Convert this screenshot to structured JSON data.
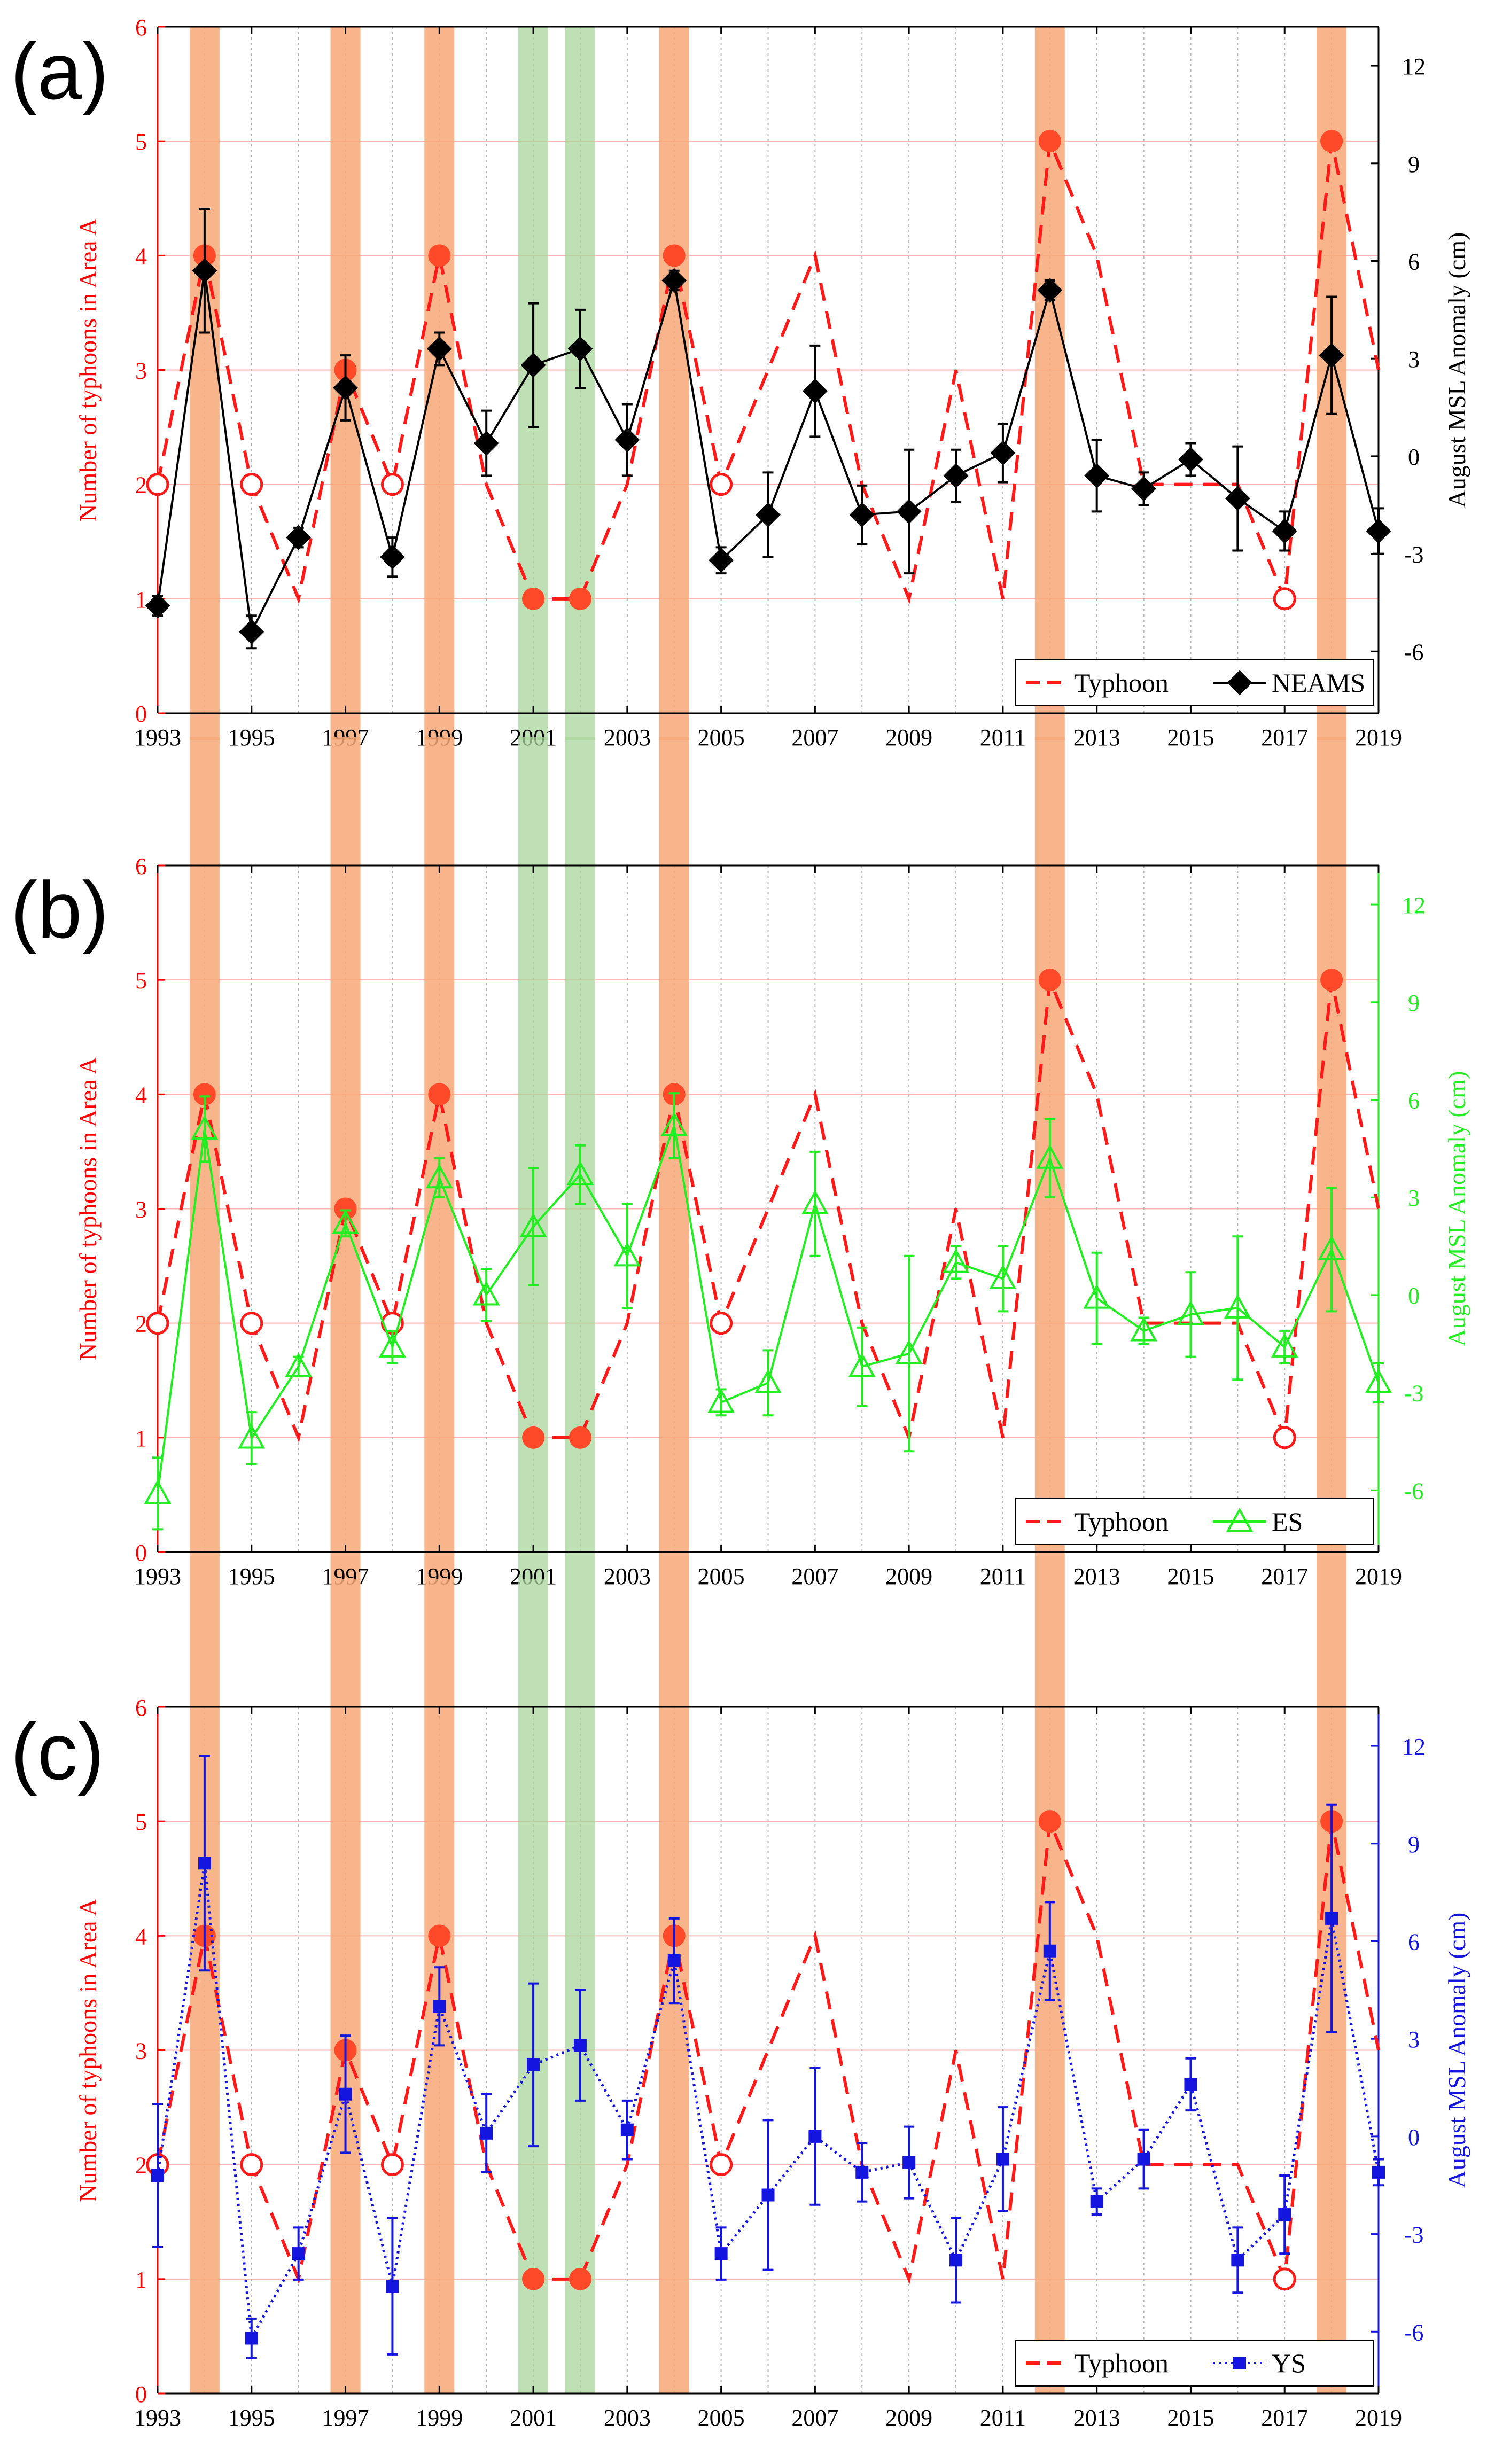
{
  "figure": {
    "colors": {
      "typhoon": "#ff1a1a",
      "typhoon_marker": "#ff4a2a",
      "orange_band": "#f7a877",
      "green_band": "#a9d59b",
      "grid": "#ffb3b3",
      "left_axis": "#ff0000"
    }
  },
  "chart_data": [
    {
      "panel_label": "(a)",
      "type": "line",
      "series_name": "NEAMS",
      "series_color": "#000000",
      "marker": "diamond",
      "line_style": "solid",
      "legend": [
        "Typhoon",
        "NEAMS"
      ],
      "legend_position": "bottom-right",
      "xlim": [
        1993,
        2019
      ],
      "x_ticks": [
        "1993",
        "1995",
        "1997",
        "1999",
        "2001",
        "2003",
        "2005",
        "2007",
        "2009",
        "2011",
        "2013",
        "2015",
        "2017",
        "2019"
      ],
      "ylabel": "Number of typhoons in Area A",
      "ylim": [
        0,
        6
      ],
      "y_ticks": [
        "0",
        "1",
        "2",
        "3",
        "4",
        "5",
        "6"
      ],
      "y2label": "August MSL Anomaly (cm)",
      "y2lim": [
        -7.9,
        13.2
      ],
      "y2_ticks": [
        "-6",
        "-3",
        "0",
        "3",
        "6",
        "9",
        "12"
      ],
      "orange_highlight_years": [
        1994,
        1997,
        1999,
        2004,
        2012,
        2018
      ],
      "green_highlight_years": [
        2001,
        2002
      ],
      "typhoon": {
        "years": [
          1993,
          1994,
          1995,
          1996,
          1997,
          1998,
          1999,
          2000,
          2001,
          2002,
          2003,
          2004,
          2005,
          2006,
          2007,
          2008,
          2009,
          2010,
          2011,
          2012,
          2013,
          2014,
          2015,
          2016,
          2017,
          2018,
          2019
        ],
        "counts": [
          2,
          4,
          2,
          1,
          3,
          2,
          4,
          2,
          1,
          1,
          2,
          4,
          2,
          3,
          4,
          2,
          1,
          3,
          1,
          5,
          4,
          2,
          2,
          2,
          1,
          5,
          3
        ],
        "filled_years": [
          1994,
          1997,
          1999,
          2001,
          2002,
          2004,
          2012,
          2018
        ],
        "open_years": [
          1993,
          1995,
          1998,
          2005,
          2017
        ]
      },
      "msl": {
        "years": [
          1993,
          1994,
          1995,
          1996,
          1997,
          1998,
          1999,
          2000,
          2001,
          2002,
          2003,
          2004,
          2005,
          2006,
          2007,
          2008,
          2009,
          2010,
          2011,
          2012,
          2013,
          2014,
          2015,
          2016,
          2017,
          2018,
          2019
        ],
        "values": [
          -4.6,
          5.7,
          -5.4,
          -2.5,
          2.1,
          -3.1,
          3.3,
          0.4,
          2.8,
          3.3,
          0.5,
          5.4,
          -3.2,
          -1.8,
          2.0,
          -1.8,
          -1.7,
          -0.6,
          0.1,
          5.1,
          -0.6,
          -1.0,
          -0.1,
          -1.3,
          -2.3,
          3.1,
          -2.3
        ],
        "errors": [
          0.3,
          1.9,
          0.5,
          0.3,
          1.0,
          0.6,
          0.5,
          1.0,
          1.9,
          1.2,
          1.1,
          0.3,
          0.4,
          1.3,
          1.4,
          0.9,
          1.9,
          0.8,
          0.9,
          0.3,
          1.1,
          0.5,
          0.5,
          1.6,
          0.6,
          1.8,
          0.7
        ]
      }
    },
    {
      "panel_label": "(b)",
      "type": "line",
      "series_name": "ES",
      "series_color": "#22ee22",
      "marker": "triangle-open",
      "line_style": "solid",
      "legend": [
        "Typhoon",
        "ES"
      ],
      "legend_position": "bottom-right",
      "xlim": [
        1993,
        2019
      ],
      "x_ticks": [
        "1993",
        "1995",
        "1997",
        "1999",
        "2001",
        "2003",
        "2005",
        "2007",
        "2009",
        "2011",
        "2013",
        "2015",
        "2017",
        "2019"
      ],
      "ylabel": "Number of typhoons in Area A",
      "ylim": [
        0,
        6
      ],
      "y_ticks": [
        "0",
        "1",
        "2",
        "3",
        "4",
        "5",
        "6"
      ],
      "y2label": "August MSL Anomaly (cm)",
      "y2lim": [
        -7.9,
        13.2
      ],
      "y2_ticks": [
        "-6",
        "-3",
        "0",
        "3",
        "6",
        "9",
        "12"
      ],
      "orange_highlight_years": [
        1994,
        1997,
        1999,
        2004,
        2012,
        2018
      ],
      "green_highlight_years": [
        2001,
        2002
      ],
      "typhoon": {
        "years": [
          1993,
          1994,
          1995,
          1996,
          1997,
          1998,
          1999,
          2000,
          2001,
          2002,
          2003,
          2004,
          2005,
          2006,
          2007,
          2008,
          2009,
          2010,
          2011,
          2012,
          2013,
          2014,
          2015,
          2016,
          2017,
          2018,
          2019
        ],
        "counts": [
          2,
          4,
          2,
          1,
          3,
          2,
          4,
          2,
          1,
          1,
          2,
          4,
          2,
          3,
          4,
          2,
          1,
          3,
          1,
          5,
          4,
          2,
          2,
          2,
          1,
          5,
          3
        ],
        "filled_years": [
          1994,
          1997,
          1999,
          2001,
          2002,
          2004,
          2012,
          2018
        ],
        "open_years": [
          1993,
          1995,
          1998,
          2005,
          2017
        ]
      },
      "msl": {
        "years": [
          1993,
          1994,
          1995,
          1996,
          1997,
          1998,
          1999,
          2000,
          2001,
          2002,
          2003,
          2004,
          2005,
          2006,
          2007,
          2008,
          2009,
          2010,
          2011,
          2012,
          2013,
          2014,
          2015,
          2016,
          2017,
          2018,
          2019
        ],
        "values": [
          -6.1,
          5.1,
          -4.4,
          -2.2,
          2.2,
          -1.6,
          3.6,
          0.0,
          2.1,
          3.7,
          1.2,
          5.2,
          -3.3,
          -2.7,
          2.8,
          -2.2,
          -1.8,
          1.0,
          0.5,
          4.2,
          -0.1,
          -1.1,
          -0.6,
          -0.4,
          -1.6,
          1.4,
          -2.7
        ],
        "errors": [
          1.1,
          1.0,
          0.8,
          0.3,
          0.4,
          0.5,
          0.6,
          0.8,
          1.8,
          0.9,
          1.6,
          1.0,
          0.4,
          1.0,
          1.6,
          1.2,
          3.0,
          0.5,
          1.0,
          1.2,
          1.4,
          0.4,
          1.3,
          2.2,
          0.5,
          1.9,
          0.6
        ]
      }
    },
    {
      "panel_label": "(c)",
      "type": "line",
      "series_name": "YS",
      "series_color": "#1515e0",
      "marker": "square",
      "line_style": "dotted",
      "legend": [
        "Typhoon",
        "YS"
      ],
      "legend_position": "bottom-right",
      "xlim": [
        1993,
        2019
      ],
      "x_ticks": [
        "1993",
        "1995",
        "1997",
        "1999",
        "2001",
        "2003",
        "2005",
        "2007",
        "2009",
        "2011",
        "2013",
        "2015",
        "2017",
        "2019"
      ],
      "ylabel": "Number of typhoons in Area A",
      "ylim": [
        0,
        6
      ],
      "y_ticks": [
        "0",
        "1",
        "2",
        "3",
        "4",
        "5",
        "6"
      ],
      "y2label": "August MSL Anomaly (cm)",
      "y2lim": [
        -7.9,
        13.2
      ],
      "y2_ticks": [
        "-6",
        "-3",
        "0",
        "3",
        "6",
        "9",
        "12"
      ],
      "orange_highlight_years": [
        1994,
        1997,
        1999,
        2004,
        2012,
        2018
      ],
      "green_highlight_years": [
        2001,
        2002
      ],
      "typhoon": {
        "years": [
          1993,
          1994,
          1995,
          1996,
          1997,
          1998,
          1999,
          2000,
          2001,
          2002,
          2003,
          2004,
          2005,
          2006,
          2007,
          2008,
          2009,
          2010,
          2011,
          2012,
          2013,
          2014,
          2015,
          2016,
          2017,
          2018,
          2019
        ],
        "counts": [
          2,
          4,
          2,
          1,
          3,
          2,
          4,
          2,
          1,
          1,
          2,
          4,
          2,
          3,
          4,
          2,
          1,
          3,
          1,
          5,
          4,
          2,
          2,
          2,
          1,
          5,
          3
        ],
        "filled_years": [
          1994,
          1997,
          1999,
          2001,
          2002,
          2004,
          2012,
          2018
        ],
        "open_years": [
          1993,
          1995,
          1998,
          2005,
          2017
        ]
      },
      "msl": {
        "years": [
          1993,
          1994,
          1995,
          1996,
          1997,
          1998,
          1999,
          2000,
          2001,
          2002,
          2003,
          2004,
          2005,
          2006,
          2007,
          2008,
          2009,
          2010,
          2011,
          2012,
          2013,
          2014,
          2015,
          2016,
          2017,
          2018,
          2019
        ],
        "values": [
          -1.2,
          8.4,
          -6.2,
          -3.6,
          1.3,
          -4.6,
          4.0,
          0.1,
          2.2,
          2.8,
          0.2,
          5.4,
          -3.6,
          -1.8,
          0.0,
          -1.1,
          -0.8,
          -3.8,
          -0.7,
          5.7,
          -2.0,
          -0.7,
          1.6,
          -3.8,
          -2.4,
          6.7,
          -1.1
        ],
        "errors": [
          2.2,
          3.3,
          0.6,
          0.8,
          1.8,
          2.1,
          1.2,
          1.2,
          2.5,
          1.7,
          0.9,
          1.3,
          0.8,
          2.3,
          2.1,
          0.9,
          1.1,
          1.3,
          1.6,
          1.5,
          0.4,
          0.9,
          0.8,
          1.0,
          1.2,
          3.5,
          0.4
        ]
      }
    }
  ]
}
